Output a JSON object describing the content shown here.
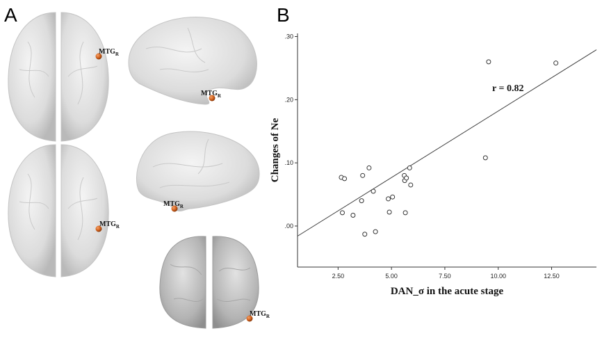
{
  "panel_a": {
    "letter": "A",
    "marker_label": "MTG",
    "marker_subscript": "R",
    "marker_color": "#d2621e"
  },
  "panel_b": {
    "letter": "B"
  },
  "chart_data": {
    "type": "scatter",
    "xlabel": "DAN_σ in the acute stage",
    "ylabel": "Changes of Ne",
    "annotation": "r = 0.82",
    "xlim": [
      0.6,
      14.6
    ],
    "ylim": [
      -0.065,
      0.305
    ],
    "xticks": [
      2.5,
      5.0,
      7.5,
      10.0,
      12.5
    ],
    "xtick_labels": [
      "2.50",
      "5.00",
      "7.50",
      "10.00",
      "12.50"
    ],
    "yticks": [
      0.0,
      0.1,
      0.2,
      0.3
    ],
    "ytick_labels": [
      ".00",
      ".10",
      ".20",
      ".30"
    ],
    "grid": false,
    "points": [
      [
        2.65,
        0.077
      ],
      [
        2.8,
        0.075
      ],
      [
        2.7,
        0.021
      ],
      [
        3.2,
        0.017
      ],
      [
        3.6,
        0.04
      ],
      [
        3.65,
        0.08
      ],
      [
        3.75,
        -0.013
      ],
      [
        3.95,
        0.092
      ],
      [
        4.15,
        0.055
      ],
      [
        4.25,
        -0.009
      ],
      [
        4.85,
        0.043
      ],
      [
        4.9,
        0.022
      ],
      [
        5.05,
        0.046
      ],
      [
        5.6,
        0.08
      ],
      [
        5.62,
        0.072
      ],
      [
        5.7,
        0.076
      ],
      [
        5.65,
        0.021
      ],
      [
        5.85,
        0.092
      ],
      [
        5.9,
        0.065
      ],
      [
        9.4,
        0.108
      ],
      [
        9.55,
        0.26
      ],
      [
        12.7,
        0.258
      ]
    ],
    "fit_line": {
      "x": [
        0.6,
        14.6
      ],
      "y": [
        -0.016,
        0.279
      ]
    }
  }
}
